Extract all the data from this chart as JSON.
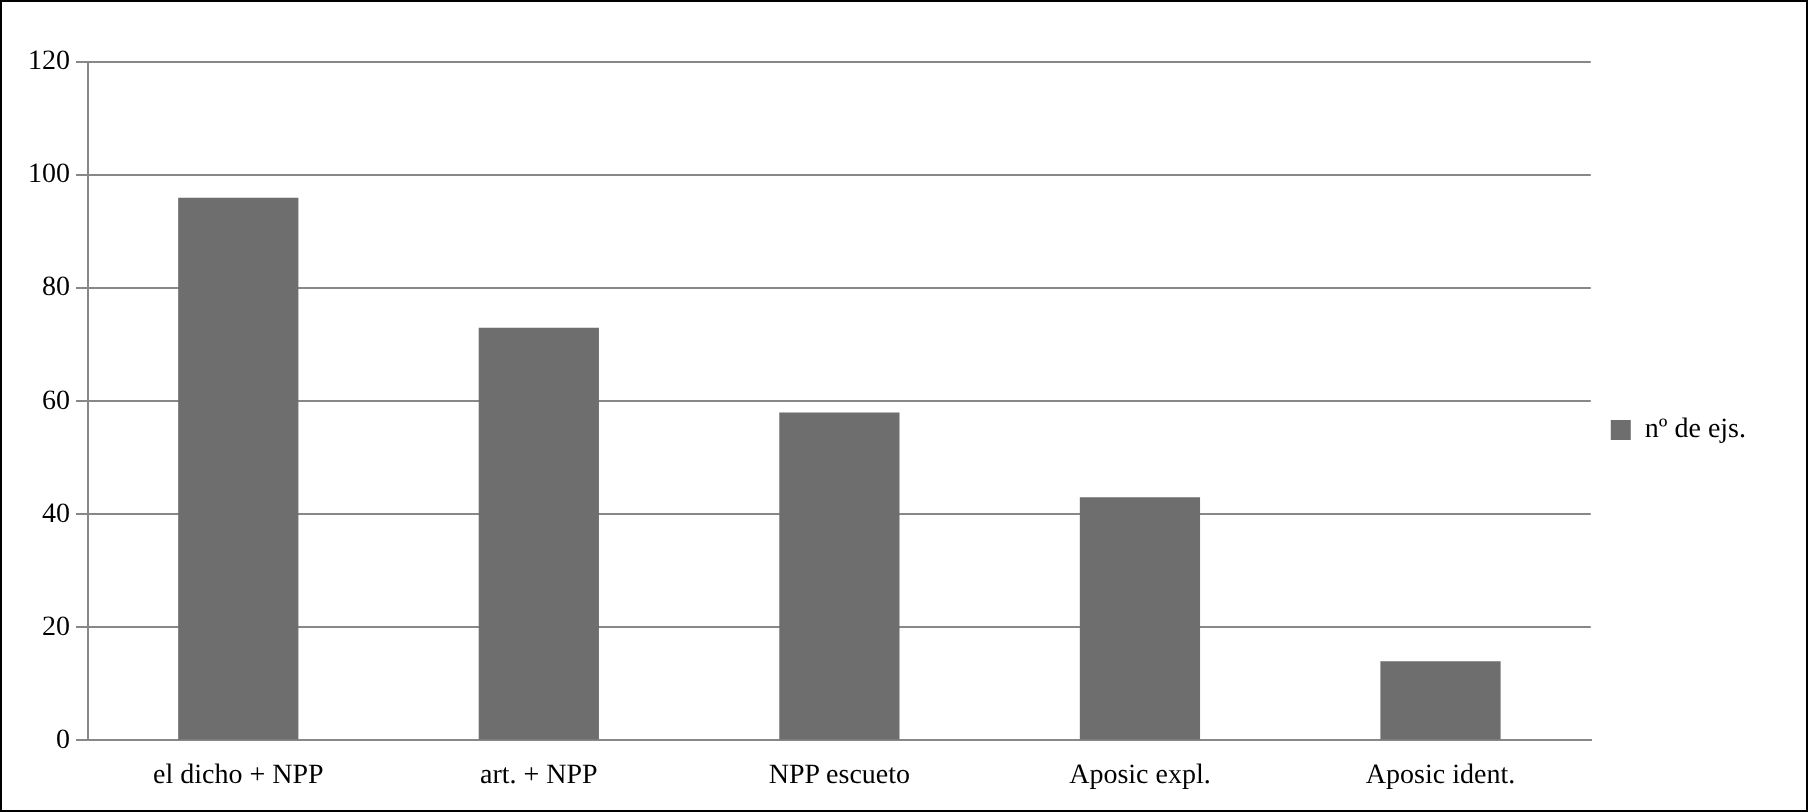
{
  "chart_data": {
    "type": "bar",
    "categories": [
      "el dicho + NPP",
      "art. + NPP",
      "NPP escueto",
      "Aposic expl.",
      "Aposic ident."
    ],
    "series": [
      {
        "name": "nº de ejs.",
        "color": "#6e6e6e",
        "values": [
          96,
          73,
          58,
          43,
          14
        ]
      }
    ],
    "ylim": [
      0,
      120
    ],
    "yticks": [
      0,
      20,
      40,
      60,
      80,
      100,
      120
    ],
    "grid": "y",
    "legend": "right"
  }
}
